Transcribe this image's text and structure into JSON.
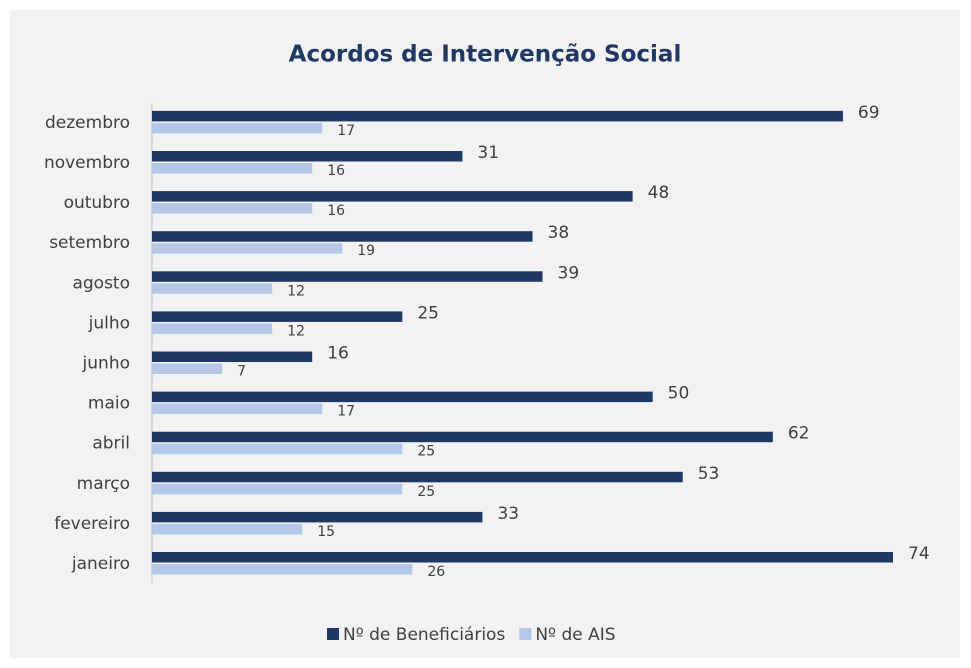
{
  "chart_data": {
    "type": "bar",
    "orientation": "horizontal",
    "title": "Acordos de Intervenção Social",
    "categories": [
      "janeiro",
      "fevereiro",
      "março",
      "abril",
      "maio",
      "junho",
      "julho",
      "agosto",
      "setembro",
      "outubro",
      "novembro",
      "dezembro"
    ],
    "series": [
      {
        "name": "Nº de Beneficiários",
        "color": "#1f3864",
        "values": [
          74,
          33,
          53,
          62,
          50,
          16,
          25,
          39,
          38,
          48,
          31,
          69
        ]
      },
      {
        "name": "Nº de AIS",
        "color": "#b4c7e7",
        "values": [
          26,
          15,
          25,
          25,
          17,
          7,
          12,
          12,
          19,
          16,
          16,
          17
        ]
      }
    ],
    "legend": "bottom"
  }
}
